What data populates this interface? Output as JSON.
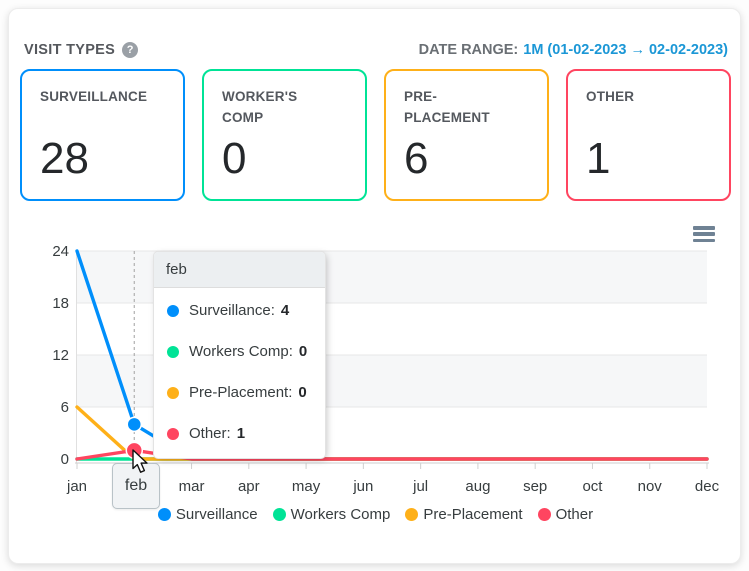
{
  "header": {
    "title": "VISIT TYPES",
    "help_icon": "question-mark-circle-icon",
    "help_glyph": "?",
    "date_range_label": "DATE RANGE:",
    "date_range_value": "1M (01-02-2023 → 02-02-2023)",
    "date_range_color": "#1b97d6"
  },
  "cards": [
    {
      "label": "SURVEILLANCE",
      "value": "28",
      "color": "#008FFB"
    },
    {
      "label": "WORKER'S COMP",
      "value": "0",
      "color": "#00E396"
    },
    {
      "label": "PRE-PLACEMENT",
      "value": "6",
      "color": "#FEB019"
    },
    {
      "label": "OTHER",
      "value": "1",
      "color": "#FF4560"
    }
  ],
  "chart_data": {
    "type": "line",
    "x": [
      "jan",
      "feb",
      "mar",
      "apr",
      "may",
      "jun",
      "jul",
      "aug",
      "sep",
      "oct",
      "nov",
      "dec"
    ],
    "yticks": [
      0,
      6,
      12,
      18,
      24
    ],
    "ylim": [
      0,
      24
    ],
    "grid": true,
    "legend_position": "bottom",
    "series": [
      {
        "name": "Surveillance",
        "color": "#008FFB",
        "values": [
          24,
          4,
          0,
          0,
          0,
          0,
          0,
          0,
          0,
          0,
          0,
          0
        ]
      },
      {
        "name": "Workers Comp",
        "color": "#00E396",
        "values": [
          0,
          0,
          0,
          0,
          0,
          0,
          0,
          0,
          0,
          0,
          0,
          0
        ]
      },
      {
        "name": "Pre-Placement",
        "color": "#FEB019",
        "values": [
          6,
          0,
          0,
          0,
          0,
          0,
          0,
          0,
          0,
          0,
          0,
          0
        ]
      },
      {
        "name": "Other",
        "color": "#FF4560",
        "values": [
          0,
          1,
          0,
          0,
          0,
          0,
          0,
          0,
          0,
          0,
          0,
          0
        ]
      }
    ]
  },
  "hover": {
    "month": "feb",
    "markers": [
      {
        "series": "Surveillance",
        "value": 4,
        "color": "#008FFB",
        "radius": 7
      },
      {
        "series": "Other",
        "value": 1,
        "color": "#FF4560",
        "radius": 8
      }
    ]
  },
  "tooltip": {
    "title": "feb",
    "rows": [
      {
        "label": "Surveillance:",
        "value": "4",
        "color": "#008FFB"
      },
      {
        "label": "Workers Comp:",
        "value": "0",
        "color": "#00E396"
      },
      {
        "label": "Pre-Placement:",
        "value": "0",
        "color": "#FEB019"
      },
      {
        "label": "Other:",
        "value": "1",
        "color": "#FF4560"
      }
    ]
  },
  "legend": {
    "items": [
      {
        "label": "Surveillance",
        "color": "#008FFB"
      },
      {
        "label": "Workers Comp",
        "color": "#00E396"
      },
      {
        "label": "Pre-Placement",
        "color": "#FEB019"
      },
      {
        "label": "Other",
        "color": "#FF4560"
      }
    ]
  },
  "icons": {
    "chart_menu": "hamburger-menu-icon",
    "pointer": "mouse-cursor-icon"
  }
}
